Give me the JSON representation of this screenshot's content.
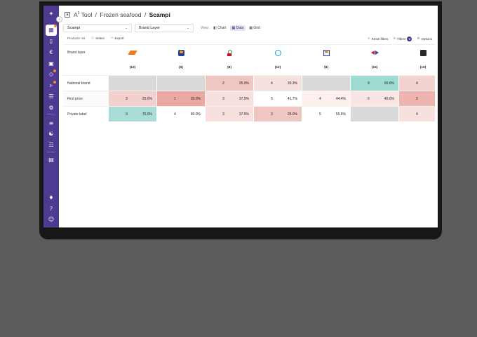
{
  "breadcrumb": {
    "app": "A",
    "app_sup": "3",
    "app_suffix": " Tool",
    "sep1": "/",
    "category": "Frozen seafood",
    "sep2": "/",
    "current": "Scampi"
  },
  "controls": {
    "product_select": "Scampi",
    "dimension_select": "Brand Layer",
    "view_label": "View:",
    "views": [
      {
        "label": "Chart",
        "icon": "chart-icon",
        "active": false
      },
      {
        "label": "Data",
        "icon": "table-icon",
        "active": true
      },
      {
        "label": "Grid",
        "icon": "grid-icon",
        "active": false
      }
    ]
  },
  "toolbar": {
    "products_count": "Products: 94",
    "select_label": "Select",
    "export_label": "Export",
    "reset_label": "Reset filters",
    "filters_label": "Filters",
    "filters_count": "3",
    "options_label": "Options"
  },
  "table": {
    "row_header": "Brand layer",
    "retailers": [
      {
        "logo": "orange-parallelogram-logo",
        "count": "(12)"
      },
      {
        "logo": "delhaize-logo",
        "count": "(5)"
      },
      {
        "logo": "spar-logo",
        "count": "(8)"
      },
      {
        "logo": "albert-heijn-logo",
        "count": "(12)"
      },
      {
        "logo": "aldi-logo",
        "count": "(9)"
      },
      {
        "logo": "carrefour-logo",
        "count": "(15)"
      },
      {
        "logo": "lion-logo",
        "count": "(10)"
      }
    ],
    "rows": [
      {
        "label": "National brand",
        "cells": [
          {
            "n": "",
            "p": "",
            "color": "#d9d9d9"
          },
          {
            "n": "",
            "p": "",
            "color": "#d9d9d9"
          },
          {
            "n": "2",
            "p": "25.0%",
            "color": "#f0c6c3"
          },
          {
            "n": "4",
            "p": "33.3%",
            "color": "#f7e1df"
          },
          {
            "n": "",
            "p": "",
            "color": "#d9d9d9"
          },
          {
            "n": "9",
            "p": "60.0%",
            "color": "#9fdcd2"
          },
          {
            "n": "4",
            "p": "4",
            "color": "#f3d3d0"
          }
        ]
      },
      {
        "label": "First price",
        "cells": [
          {
            "n": "3",
            "p": "25.0%",
            "color": "#f2d0cd"
          },
          {
            "n": "1",
            "p": "20.0%",
            "color": "#eba7a2"
          },
          {
            "n": "3",
            "p": "37.5%",
            "color": "#f7e0de"
          },
          {
            "n": "5",
            "p": "41.7%",
            "color": "#ffffff"
          },
          {
            "n": "4",
            "p": "44.4%",
            "color": "#fdf0ef"
          },
          {
            "n": "6",
            "p": "40.0%",
            "color": "#f9e6e4"
          },
          {
            "n": "2",
            "p": "2",
            "color": "#eeb5b0"
          }
        ]
      },
      {
        "label": "Private label",
        "cells": [
          {
            "n": "9",
            "p": "75.0%",
            "color": "#a7ddd4"
          },
          {
            "n": "4",
            "p": "80.0%",
            "color": "#ffffff"
          },
          {
            "n": "3",
            "p": "37.5%",
            "color": "#f7e0de"
          },
          {
            "n": "3",
            "p": "25.0%",
            "color": "#f0c6c3"
          },
          {
            "n": "5",
            "p": "55.6%",
            "color": "#ffffff"
          },
          {
            "n": "",
            "p": "",
            "color": "#d9d9d9"
          },
          {
            "n": "4",
            "p": "4",
            "color": "#f7e1df"
          }
        ]
      }
    ]
  },
  "sidebar": {
    "icons": [
      "logo-icon",
      "dashboard-icon",
      "cart-icon",
      "euro-icon",
      "calendar-icon",
      "tag-icon",
      "megaphone-icon",
      "list-icon",
      "settings-icon",
      "sliders-icon",
      "users-icon",
      "hierarchy-icon",
      "document-icon",
      "bell-icon",
      "help-icon",
      "user-icon"
    ]
  }
}
